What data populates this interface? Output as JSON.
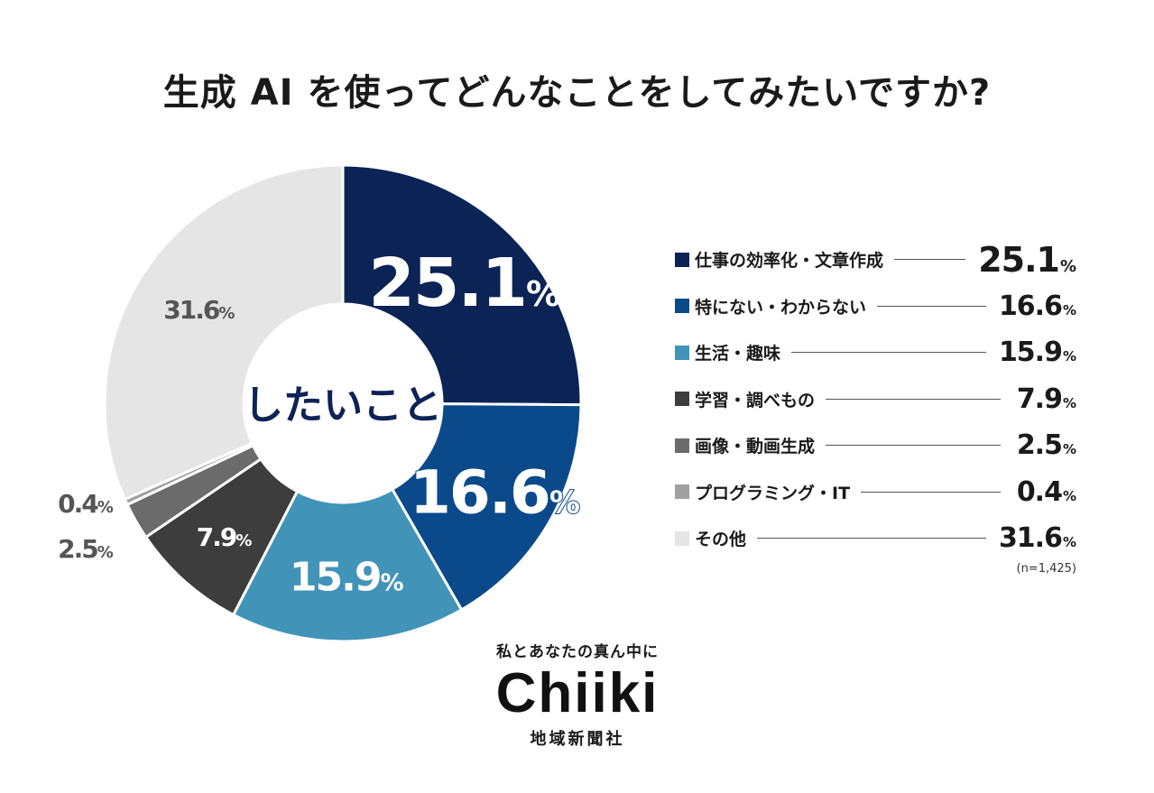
{
  "title": "生成 AI を使ってどんなことをしてみたいですか?",
  "center_label": "したいこと",
  "sample_note": "(n=1,425)",
  "logo": {
    "tagline": "私とあなたの真ん中に",
    "wordmark": "Chiiki",
    "company": "地域新聞社"
  },
  "chart_data": {
    "type": "pie",
    "donut": true,
    "title": "生成 AI を使ってどんなことをしてみたいですか?",
    "unit": "%",
    "slices": [
      {
        "label": "仕事の効率化・文章作成",
        "value": 25.1,
        "color": "#0c2356",
        "num": "25.1"
      },
      {
        "label": "特にない・わからない",
        "value": 16.6,
        "color": "#0b4a8a",
        "num": "16.6"
      },
      {
        "label": "生活・趣味",
        "value": 15.9,
        "color": "#4194b8",
        "num": "15.9"
      },
      {
        "label": "学習・調べもの",
        "value": 7.9,
        "color": "#3d3d3d",
        "num": "7.9"
      },
      {
        "label": "画像・動画生成",
        "value": 2.5,
        "color": "#6b6b6b",
        "num": "2.5"
      },
      {
        "label": "プログラミング・IT",
        "value": 0.4,
        "color": "#a0a0a0",
        "num": "0.4"
      },
      {
        "label": "その他",
        "value": 31.6,
        "color": "#e5e5e5",
        "num": "31.6"
      }
    ]
  }
}
